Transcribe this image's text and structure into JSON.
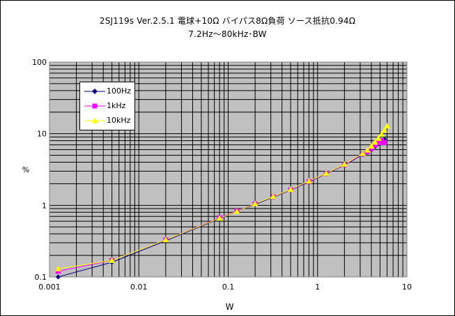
{
  "chart_data": {
    "type": "line",
    "title": "2SJ119s Ver.2.5.1 電球+10Ω バイパス8Ω負荷 ソース抵抗0.94Ω",
    "subtitle": "7.2Hz～80kHz･BW",
    "xlabel": "W",
    "ylabel": "%",
    "x_scale": "log",
    "y_scale": "log",
    "xlim": [
      0.001,
      10
    ],
    "ylim": [
      0.1,
      100
    ],
    "x_ticks": [
      "0.001",
      "0.01",
      "0.1",
      "1",
      "10"
    ],
    "y_ticks": [
      "100",
      "10",
      "1",
      "0.1"
    ],
    "grid": true,
    "legend_position": "top-left",
    "series": [
      {
        "name": "100Hz",
        "color": "#000080",
        "marker": "diamond",
        "points": [
          [
            0.00125,
            0.1
          ],
          [
            0.005,
            0.16
          ],
          [
            0.02,
            0.32
          ],
          [
            0.08,
            0.65
          ],
          [
            0.125,
            0.82
          ],
          [
            0.2,
            1.03
          ],
          [
            0.32,
            1.3
          ],
          [
            0.5,
            1.63
          ],
          [
            0.8,
            2.12
          ],
          [
            1.25,
            2.75
          ],
          [
            2.0,
            3.65
          ],
          [
            3.2,
            5.1
          ],
          [
            3.6,
            5.5
          ],
          [
            4.0,
            6.0
          ],
          [
            4.4,
            6.6
          ],
          [
            4.8,
            7.2
          ],
          [
            5.2,
            7.8
          ],
          [
            5.6,
            8.4
          ]
        ]
      },
      {
        "name": "1kHz",
        "color": "#FF00FF",
        "marker": "square",
        "points": [
          [
            0.00125,
            0.12
          ],
          [
            0.005,
            0.17
          ],
          [
            0.02,
            0.33
          ],
          [
            0.08,
            0.67
          ],
          [
            0.125,
            0.83
          ],
          [
            0.2,
            1.05
          ],
          [
            0.32,
            1.32
          ],
          [
            0.5,
            1.65
          ],
          [
            0.8,
            2.15
          ],
          [
            1.25,
            2.78
          ],
          [
            2.0,
            3.7
          ],
          [
            3.2,
            5.2
          ],
          [
            3.6,
            5.6
          ],
          [
            4.0,
            6.2
          ],
          [
            4.4,
            6.9
          ],
          [
            4.8,
            7.5
          ],
          [
            5.2,
            8.0
          ],
          [
            5.6,
            7.5
          ]
        ]
      },
      {
        "name": "10kHz",
        "color": "#FFFF00",
        "marker": "triangle",
        "points": [
          [
            0.00125,
            0.13
          ],
          [
            0.005,
            0.17
          ],
          [
            0.02,
            0.33
          ],
          [
            0.08,
            0.66
          ],
          [
            0.125,
            0.82
          ],
          [
            0.2,
            1.05
          ],
          [
            0.32,
            1.33
          ],
          [
            0.5,
            1.66
          ],
          [
            0.8,
            2.18
          ],
          [
            1.25,
            2.8
          ],
          [
            2.0,
            3.75
          ],
          [
            3.2,
            5.3
          ],
          [
            3.6,
            5.9
          ],
          [
            4.0,
            6.7
          ],
          [
            4.4,
            7.6
          ],
          [
            4.8,
            8.6
          ],
          [
            5.2,
            9.8
          ],
          [
            5.6,
            11.2
          ],
          [
            6.0,
            12.8
          ]
        ]
      }
    ]
  }
}
